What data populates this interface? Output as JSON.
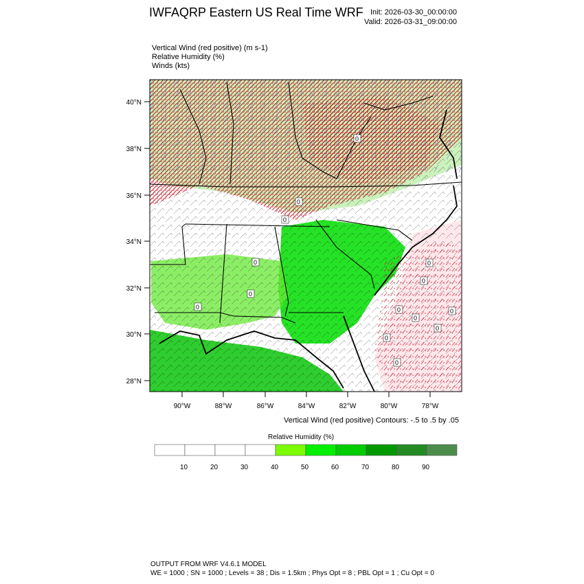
{
  "header": {
    "title": "IWFAQRP Eastern US Real Time WRF",
    "init": "Init: 2026-03-30_00:00:00",
    "valid": "Valid: 2026-03-31_09:00:00"
  },
  "fields": [
    "Vertical Wind (red positive)   (m s-1)",
    "Relative Humidity   (%)",
    "Winds   (kts)"
  ],
  "map": {
    "lat_labels": [
      "40°N",
      "38°N",
      "36°N",
      "34°N",
      "32°N",
      "30°N",
      "28°N"
    ],
    "lon_labels": [
      "90°W",
      "88°W",
      "86°W",
      "84°W",
      "82°W",
      "80°W",
      "78°W"
    ],
    "contour_zero_label": "0",
    "colors": {
      "updraft": "#c8000f",
      "downdraft": "#1f2ad6",
      "barb": "#000000",
      "state_line": "#000000"
    }
  },
  "contour_note": "Vertical Wind (red positive) Contours: -.5 to .5 by .05",
  "colorbar": {
    "title": "Relative Humidity  (%)",
    "labels": [
      "10",
      "20",
      "30",
      "40",
      "50",
      "60",
      "70",
      "80",
      "90"
    ],
    "colors": [
      "#ffffff",
      "#ffffff",
      "#ffffff",
      "#ffffff",
      "#7cfc00",
      "#00f000",
      "#00cc00",
      "#009a00",
      "#248b24",
      "#4c8d4c"
    ]
  },
  "footer": {
    "line1": "OUTPUT FROM WRF V4.6.1 MODEL",
    "line2": "WE = 1000 ; SN = 1000 ; Levels = 38 ; Dis = 1.5km ; Phys Opt = 8 ; PBL Opt = 1 ; Cu Opt = 0"
  }
}
